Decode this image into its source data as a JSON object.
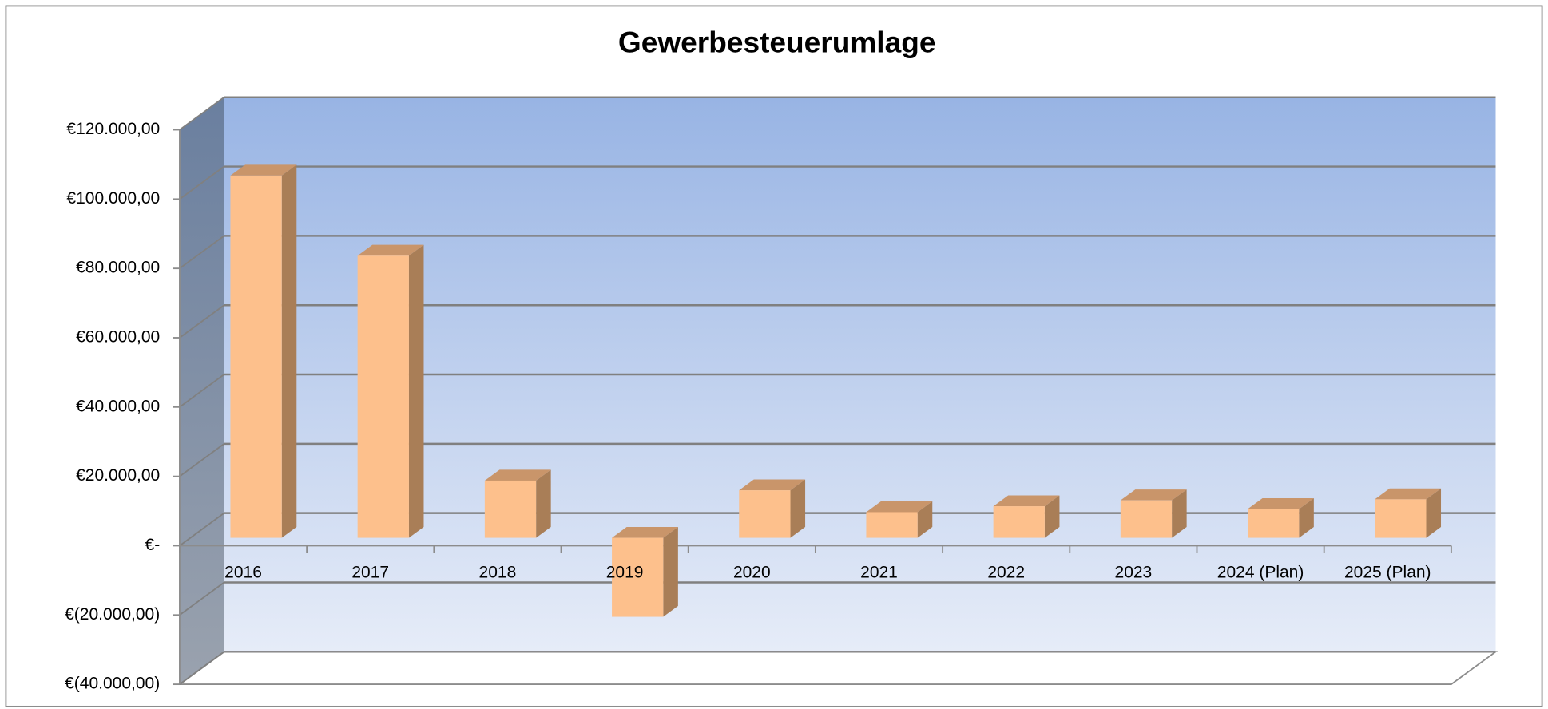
{
  "chart_data": {
    "type": "bar3d",
    "title": "Gewerbesteuerumlage",
    "categories": [
      "2016",
      "2017",
      "2018",
      "2019",
      "2020",
      "2021",
      "2022",
      "2023",
      "2024 (Plan)",
      "2025 (Plan)"
    ],
    "values": [
      104500,
      81400,
      16500,
      -22800,
      13700,
      7400,
      9100,
      10800,
      8300,
      11100
    ],
    "color": "#fdc08c",
    "ylim": [
      -40000,
      120000
    ],
    "yticks": [
      {
        "value": -40000,
        "label": "€(40.000,00)"
      },
      {
        "value": -20000,
        "label": "€(20.000,00)"
      },
      {
        "value": 0,
        "label": "€-"
      },
      {
        "value": 20000,
        "label": "€20.000,00"
      },
      {
        "value": 40000,
        "label": "€40.000,00"
      },
      {
        "value": 60000,
        "label": "€60.000,00"
      },
      {
        "value": 80000,
        "label": "€80.000,00"
      },
      {
        "value": 100000,
        "label": "€100.000,00"
      },
      {
        "value": 120000,
        "label": "€120.000,00"
      }
    ],
    "grid": true
  }
}
